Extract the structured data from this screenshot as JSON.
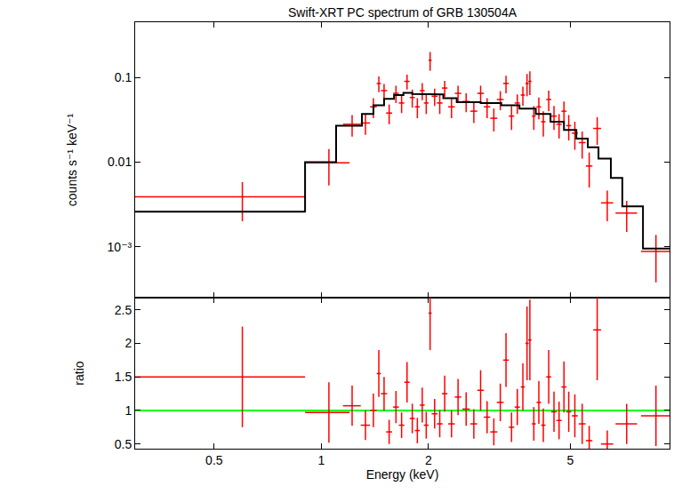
{
  "chart_data": [
    {
      "type": "scatter",
      "title": "Swift-XRT PC spectrum of GRB 130504A",
      "y_label": "counts s⁻¹ keV⁻¹",
      "log": true,
      "grid": false,
      "tick_labels": "y",
      "xlim": [
        0.3,
        9.5
      ],
      "ylim": [
        0.00025,
        0.45
      ],
      "xticks": [
        0.5,
        1,
        2,
        5
      ],
      "yticks": [
        {
          "value": 0.001,
          "label": "10⁻³"
        },
        0.01,
        0.1
      ],
      "series": [
        {
          "type": "scatter",
          "color": "#ff0000",
          "x": [
            0.6,
            1.05,
            1.22,
            1.33,
            1.4,
            1.45,
            1.5,
            1.55,
            1.62,
            1.68,
            1.74,
            1.8,
            1.86,
            1.92,
            1.97,
            2.02,
            2.08,
            2.15,
            2.22,
            2.32,
            2.42,
            2.55,
            2.68,
            2.8,
            2.92,
            3.05,
            3.18,
            3.3,
            3.42,
            3.55,
            3.68,
            3.78,
            3.85,
            3.95,
            4.08,
            4.2,
            4.35,
            4.5,
            4.65,
            4.8,
            4.95,
            5.15,
            5.4,
            5.65,
            5.95,
            6.35,
            7.2,
            8.7
          ],
          "x_error": [
            [
              0.3,
              0.3
            ],
            [
              0.15,
              0.15
            ],
            [
              0.07,
              0.07
            ],
            [
              0.04,
              0.04
            ],
            [
              0.03,
              0.03
            ],
            [
              0.02,
              0.02
            ],
            [
              0.03,
              0.03
            ],
            [
              0.03,
              0.03
            ],
            [
              0.03,
              0.03
            ],
            [
              0.03,
              0.03
            ],
            [
              0.03,
              0.03
            ],
            [
              0.03,
              0.03
            ],
            [
              0.03,
              0.03
            ],
            [
              0.03,
              0.03
            ],
            [
              0.03,
              0.03
            ],
            [
              0.02,
              0.02
            ],
            [
              0.04,
              0.04
            ],
            [
              0.04,
              0.04
            ],
            [
              0.04,
              0.04
            ],
            [
              0.05,
              0.05
            ],
            [
              0.05,
              0.05
            ],
            [
              0.06,
              0.06
            ],
            [
              0.06,
              0.06
            ],
            [
              0.06,
              0.06
            ],
            [
              0.06,
              0.06
            ],
            [
              0.07,
              0.07
            ],
            [
              0.07,
              0.07
            ],
            [
              0.06,
              0.06
            ],
            [
              0.06,
              0.06
            ],
            [
              0.06,
              0.06
            ],
            [
              0.05,
              0.05
            ],
            [
              0.04,
              0.04
            ],
            [
              0.04,
              0.04
            ],
            [
              0.05,
              0.05
            ],
            [
              0.06,
              0.06
            ],
            [
              0.06,
              0.06
            ],
            [
              0.07,
              0.07
            ],
            [
              0.08,
              0.08
            ],
            [
              0.08,
              0.08
            ],
            [
              0.08,
              0.08
            ],
            [
              0.08,
              0.08
            ],
            [
              0.1,
              0.1
            ],
            [
              0.12,
              0.12
            ],
            [
              0.12,
              0.12
            ],
            [
              0.15,
              0.15
            ],
            [
              0.25,
              0.25
            ],
            [
              0.5,
              0.5
            ],
            [
              0.8,
              0.8
            ]
          ],
          "values": [
            0.0039,
            0.0098,
            0.028,
            0.029,
            0.045,
            0.085,
            0.07,
            0.038,
            0.065,
            0.05,
            0.09,
            0.058,
            0.045,
            0.07,
            0.05,
            0.16,
            0.06,
            0.05,
            0.075,
            0.045,
            0.065,
            0.052,
            0.04,
            0.065,
            0.045,
            0.033,
            0.055,
            0.085,
            0.035,
            0.05,
            0.062,
            0.085,
            0.09,
            0.035,
            0.045,
            0.03,
            0.055,
            0.035,
            0.028,
            0.04,
            0.027,
            0.022,
            0.017,
            0.009,
            0.025,
            0.0033,
            0.0025,
            0.00088
          ],
          "y_error": [
            0.0019,
            0.0045,
            0.008,
            0.008,
            0.012,
            0.018,
            0.014,
            0.01,
            0.015,
            0.012,
            0.018,
            0.014,
            0.012,
            0.016,
            0.013,
            0.04,
            0.014,
            0.013,
            0.016,
            0.012,
            0.015,
            0.013,
            0.011,
            0.015,
            0.012,
            0.01,
            0.014,
            0.02,
            0.011,
            0.013,
            0.016,
            0.025,
            0.028,
            0.011,
            0.013,
            0.01,
            0.015,
            0.011,
            0.009,
            0.012,
            0.009,
            0.008,
            0.006,
            0.004,
            0.009,
            0.0013,
            0.001,
            0.0005
          ]
        },
        {
          "type": "step",
          "color": "#000000",
          "x_edges": [
            0.3,
            0.9,
            1.1,
            1.3,
            1.4,
            1.5,
            1.6,
            1.7,
            1.8,
            2.0,
            2.2,
            2.4,
            2.8,
            3.2,
            3.6,
            4.0,
            4.4,
            4.8,
            5.2,
            5.6,
            6.0,
            6.5,
            7.0,
            8.0,
            9.5
          ],
          "values": [
            0.0026,
            0.01,
            0.027,
            0.037,
            0.047,
            0.056,
            0.062,
            0.066,
            0.064,
            0.063,
            0.057,
            0.051,
            0.05,
            0.047,
            0.043,
            0.037,
            0.03,
            0.024,
            0.019,
            0.015,
            0.011,
            0.0065,
            0.003,
            0.00095
          ]
        }
      ]
    },
    {
      "type": "scatter",
      "x_label": "Energy (keV)",
      "y_label": "ratio",
      "log": "x",
      "grid": false,
      "xlim": [
        0.3,
        9.5
      ],
      "ylim": [
        0.43,
        2.68
      ],
      "xticks": [
        0.5,
        1,
        2,
        5
      ],
      "yticks": [
        0.5,
        1,
        1.5,
        2,
        2.5
      ],
      "reference_line": {
        "value": 1,
        "color": "#00ff00"
      },
      "series": [
        {
          "type": "scatter",
          "color": "#ff0000",
          "x": [
            0.6,
            1.05,
            1.22,
            1.33,
            1.4,
            1.45,
            1.5,
            1.55,
            1.62,
            1.68,
            1.74,
            1.8,
            1.86,
            1.92,
            1.97,
            2.02,
            2.08,
            2.15,
            2.22,
            2.32,
            2.42,
            2.55,
            2.68,
            2.8,
            2.92,
            3.05,
            3.18,
            3.3,
            3.42,
            3.55,
            3.68,
            3.78,
            3.85,
            3.95,
            4.08,
            4.2,
            4.35,
            4.5,
            4.65,
            4.8,
            4.95,
            5.15,
            5.4,
            5.65,
            5.95,
            6.35,
            7.2,
            8.7
          ],
          "x_error": [
            [
              0.3,
              0.3
            ],
            [
              0.15,
              0.15
            ],
            [
              0.07,
              0.07
            ],
            [
              0.04,
              0.04
            ],
            [
              0.03,
              0.03
            ],
            [
              0.02,
              0.02
            ],
            [
              0.03,
              0.03
            ],
            [
              0.03,
              0.03
            ],
            [
              0.03,
              0.03
            ],
            [
              0.03,
              0.03
            ],
            [
              0.03,
              0.03
            ],
            [
              0.03,
              0.03
            ],
            [
              0.03,
              0.03
            ],
            [
              0.03,
              0.03
            ],
            [
              0.03,
              0.03
            ],
            [
              0.02,
              0.02
            ],
            [
              0.04,
              0.04
            ],
            [
              0.04,
              0.04
            ],
            [
              0.04,
              0.04
            ],
            [
              0.05,
              0.05
            ],
            [
              0.05,
              0.05
            ],
            [
              0.06,
              0.06
            ],
            [
              0.06,
              0.06
            ],
            [
              0.06,
              0.06
            ],
            [
              0.06,
              0.06
            ],
            [
              0.07,
              0.07
            ],
            [
              0.07,
              0.07
            ],
            [
              0.06,
              0.06
            ],
            [
              0.06,
              0.06
            ],
            [
              0.06,
              0.06
            ],
            [
              0.05,
              0.05
            ],
            [
              0.04,
              0.04
            ],
            [
              0.04,
              0.04
            ],
            [
              0.05,
              0.05
            ],
            [
              0.06,
              0.06
            ],
            [
              0.06,
              0.06
            ],
            [
              0.07,
              0.07
            ],
            [
              0.08,
              0.08
            ],
            [
              0.08,
              0.08
            ],
            [
              0.08,
              0.08
            ],
            [
              0.08,
              0.08
            ],
            [
              0.1,
              0.1
            ],
            [
              0.12,
              0.12
            ],
            [
              0.12,
              0.12
            ],
            [
              0.15,
              0.15
            ],
            [
              0.25,
              0.25
            ],
            [
              0.5,
              0.5
            ],
            [
              0.8,
              0.8
            ]
          ],
          "values": [
            1.5,
            0.97,
            1.07,
            0.78,
            1.0,
            1.55,
            1.25,
            0.68,
            1.05,
            0.78,
            1.42,
            0.88,
            0.7,
            1.08,
            0.78,
            2.45,
            0.95,
            0.8,
            1.25,
            0.8,
            1.2,
            1.02,
            0.8,
            1.3,
            0.9,
            0.68,
            1.12,
            1.75,
            0.75,
            1.05,
            1.35,
            2.0,
            2.05,
            0.8,
            1.12,
            0.78,
            1.5,
            0.98,
            0.85,
            1.35,
            0.98,
            0.92,
            0.8,
            0.55,
            2.2,
            0.5,
            0.8,
            0.92
          ],
          "y_error": [
            0.75,
            0.45,
            0.3,
            0.22,
            0.25,
            0.35,
            0.25,
            0.18,
            0.24,
            0.19,
            0.3,
            0.22,
            0.19,
            0.26,
            0.2,
            0.55,
            0.22,
            0.2,
            0.27,
            0.2,
            0.27,
            0.25,
            0.22,
            0.3,
            0.24,
            0.2,
            0.28,
            0.4,
            0.22,
            0.27,
            0.35,
            0.55,
            0.6,
            0.25,
            0.32,
            0.25,
            0.4,
            0.3,
            0.28,
            0.38,
            0.3,
            0.32,
            0.3,
            0.22,
            0.75,
            0.2,
            0.3,
            0.45
          ]
        }
      ]
    }
  ]
}
